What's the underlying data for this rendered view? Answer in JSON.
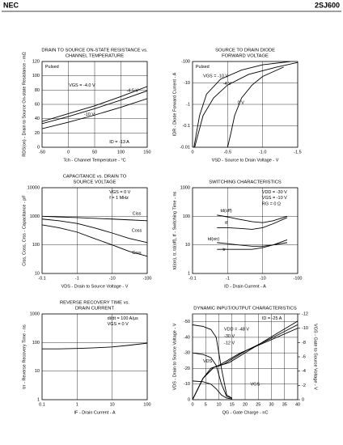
{
  "header": {
    "brand": "NEC",
    "part": "2SJ600"
  },
  "chart_data": [
    {
      "type": "line",
      "title": [
        "DRAIN TO SOURCE ON-STATE RESISTANCE vs.",
        "CHANNEL TEMPERATURE"
      ],
      "xlabel": "Tch - Channel Temperature - °C",
      "ylabel": "RDS(on) - Drain to Source On-state Resistance - mΩ",
      "x": [
        -50,
        0,
        50,
        100,
        150
      ],
      "series": [
        {
          "name": "VGS = -4.0 V",
          "color": "#000",
          "values": [
            36,
            47,
            58,
            71,
            85
          ]
        },
        {
          "name": "-4.5 V",
          "color": "#000",
          "values": [
            33,
            43,
            54,
            66,
            79
          ]
        },
        {
          "name": "-10 V",
          "color": "#000",
          "values": [
            26,
            35,
            45,
            56,
            68
          ]
        }
      ],
      "annotations": [
        "Pulsed",
        "ID = -13 A"
      ],
      "xlim": [
        -50,
        150
      ],
      "xticks": [
        -50,
        0,
        50,
        100,
        150
      ],
      "ylim": [
        0,
        120
      ],
      "yticks": [
        0,
        20,
        40,
        60,
        80,
        100,
        120
      ],
      "grid": true
    },
    {
      "type": "line",
      "title": [
        "SOURCE TO DRAIN DIODE",
        "FORWARD VOLTAGE"
      ],
      "xlabel": "VSD - Source to Drain Voltage - V",
      "ylabel": "IDR - Diode Forward Current - A",
      "series": [
        {
          "name": "VGS = -10 V",
          "color": "#000",
          "x": [
            -0.02,
            -0.1,
            -0.2,
            -0.4,
            -0.7,
            -1,
            -1.4
          ],
          "values": [
            -0.01,
            -0.3,
            -3,
            -15,
            -40,
            -70,
            -100
          ]
        },
        {
          "name": "-4 V",
          "color": "#000",
          "x": [
            -0.03,
            -0.15,
            -0.3,
            -0.5,
            -0.8,
            -1.2,
            -1.5
          ],
          "values": [
            -0.01,
            -0.3,
            -2,
            -8,
            -25,
            -55,
            -90
          ]
        },
        {
          "name": "0 V",
          "color": "#000",
          "x": [
            -0.5,
            -0.55,
            -0.6,
            -0.7,
            -0.85,
            -1,
            -1.3
          ],
          "values": [
            -0.01,
            -0.05,
            -0.3,
            -2,
            -8,
            -20,
            -55
          ]
        }
      ],
      "annotations": [
        "Pulsed"
      ],
      "xlim": [
        0,
        -1.5
      ],
      "xticks": [
        0,
        -0.5,
        {
          "value": -1,
          "label": "-1.0"
        },
        -1.5
      ],
      "ylim": [
        -0.01,
        -100
      ],
      "ylog": true,
      "yticks": [
        -0.01,
        -0.1,
        -1,
        -10,
        -100
      ],
      "grid": true
    },
    {
      "type": "line",
      "title": [
        "CAPACITANCE vs. DRAIN TO",
        "SOURCE VOLTAGE"
      ],
      "xlabel": "VDS - Drain to Source Voltage - V",
      "ylabel": "Ciss, Coss, Crss - Capacitance - pF",
      "x": [
        -0.1,
        -0.3,
        -1,
        -3,
        -10,
        -30,
        -100
      ],
      "series": [
        {
          "name": "Ciss",
          "color": "#000",
          "values": [
            1000,
            950,
            900,
            850,
            800,
            750,
            700
          ]
        },
        {
          "name": "Coss",
          "color": "#000",
          "values": [
            800,
            700,
            560,
            400,
            260,
            170,
            120
          ]
        },
        {
          "name": "Crss",
          "color": "#000",
          "values": [
            500,
            400,
            280,
            170,
            100,
            60,
            40
          ]
        }
      ],
      "annotations": [
        "VGS = 0 V",
        "f = 1 MHz"
      ],
      "xlim": [
        -0.1,
        -100
      ],
      "xlog": true,
      "xticks": [
        -0.1,
        -1,
        -10,
        -100
      ],
      "ylim": [
        10,
        10000
      ],
      "ylog": true,
      "yticks": [
        10,
        100,
        1000,
        10000
      ],
      "grid": true
    },
    {
      "type": "line",
      "title": [
        "SWITCHING CHARACTERISTICS"
      ],
      "xlabel": "ID - Drain Current - A",
      "ylabel": "td(on), tr, td(off), tf - Switching Time - ns",
      "x": [
        -0.5,
        -1,
        -2,
        -5,
        -10,
        -20,
        -50
      ],
      "series": [
        {
          "name": "td(off)",
          "color": "#000",
          "values": [
            110,
            95,
            80,
            65,
            60,
            70,
            100
          ]
        },
        {
          "name": "tf",
          "color": "#000",
          "values": [
            40,
            40,
            38,
            35,
            40,
            55,
            90
          ]
        },
        {
          "name": "td(on)",
          "color": "#000",
          "values": [
            12,
            11,
            10,
            9,
            9,
            10,
            12
          ]
        },
        {
          "name": "tr",
          "color": "#000",
          "values": [
            7,
            7,
            7,
            7,
            8,
            10,
            15
          ]
        }
      ],
      "annotations": [
        "VDD = -30 V",
        "VGS = -10 V",
        "RG = 0 Ω"
      ],
      "xlim": [
        -0.1,
        -100
      ],
      "xlog": true,
      "xticks": [
        -0.1,
        -1,
        -10,
        -100
      ],
      "ylim": [
        1,
        1000
      ],
      "ylog": true,
      "yticks": [
        1,
        10,
        100,
        1000
      ],
      "grid": true
    },
    {
      "type": "line",
      "title": [
        "REVERSE RECOVERY TIME vs.",
        "DRAIN CURRENT"
      ],
      "xlabel": "IF - Drain Current - A",
      "ylabel": "trr - Reverse Recovery Time - ns",
      "x": [
        0.1,
        0.3,
        1,
        3,
        10,
        30,
        100
      ],
      "series": [
        {
          "color": "#000",
          "values": [
            60,
            60,
            62,
            65,
            70,
            80,
            95
          ]
        }
      ],
      "annotations": [
        "di/dt = 100 A/μs",
        "VGS = 0 V"
      ],
      "xlim": [
        0.1,
        100
      ],
      "xlog": true,
      "xticks": [
        0.1,
        1,
        10,
        100
      ],
      "ylim": [
        1,
        1000
      ],
      "ylog": true,
      "yticks": [
        1,
        10,
        100,
        1000
      ],
      "grid": true
    },
    {
      "type": "line",
      "title": [
        "DYNAMIC INPUT/OUTPUT CHARACTERISTICS"
      ],
      "xlabel": "QG - Gate Charge - nC",
      "ylabel": "VDS - Drain to Source Voltage - V",
      "y2label": "VGS - Gate to Source Voltage - V",
      "series": [
        {
          "color": "#000",
          "x": [
            0,
            4,
            7,
            9,
            11,
            13,
            15
          ],
          "values": [
            -48,
            -47,
            -45,
            -40,
            -20,
            -3,
            -1
          ]
        },
        {
          "color": "#000",
          "x": [
            0,
            4,
            7,
            9,
            11,
            13,
            15
          ],
          "values": [
            -30,
            -29,
            -27,
            -22,
            -10,
            -2,
            -1
          ]
        },
        {
          "color": "#000",
          "x": [
            0,
            4,
            7,
            9,
            11,
            13,
            15
          ],
          "values": [
            -12,
            -11.5,
            -10,
            -7,
            -3,
            -1,
            -0.5
          ]
        },
        {
          "color": "#000",
          "axis": "y2",
          "x": [
            0,
            4,
            8,
            14,
            22,
            30,
            40
          ],
          "values": [
            0,
            -3,
            -4.5,
            -5.2,
            -7,
            -8.8,
            -11
          ]
        },
        {
          "color": "#000",
          "axis": "y2",
          "x": [
            0,
            4,
            8,
            12,
            20,
            30,
            40
          ],
          "values": [
            0,
            -3,
            -4.5,
            -5,
            -6.8,
            -8.6,
            -10.5
          ]
        },
        {
          "color": "#000",
          "axis": "y2",
          "x": [
            0,
            4,
            7,
            10,
            18,
            30,
            40
          ],
          "values": [
            0,
            -3,
            -4.4,
            -4.8,
            -6.5,
            -8.4,
            -10
          ]
        }
      ],
      "annotations": [
        "ID = -25 A",
        "VDD = -48 V",
        "-30 V",
        "-12 V",
        "VGS",
        "VDS"
      ],
      "xlim": [
        0,
        40
      ],
      "xticks": [
        0,
        5,
        10,
        15,
        20,
        25,
        30,
        35,
        40
      ],
      "ylim": [
        0,
        -55
      ],
      "yticks": [
        0,
        -10,
        -20,
        -30,
        -40,
        -50
      ],
      "y2lim": [
        0,
        -12
      ],
      "y2ticks": [
        0,
        -2,
        -4,
        -6,
        -8,
        -10,
        -12
      ],
      "grid": true
    }
  ]
}
